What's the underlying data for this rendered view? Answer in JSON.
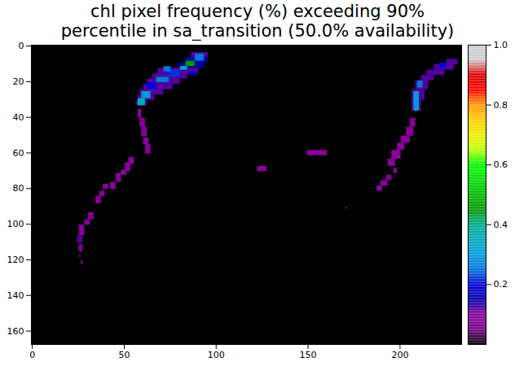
{
  "chart_data": {
    "type": "heatmap",
    "title": "chl pixel frequency (%) exceeding 90%\npercentile in sa_transition (50.0% availability)",
    "xlim": [
      -0.5,
      233.5
    ],
    "ylim": [
      167.5,
      -0.5
    ],
    "xticks": [
      0,
      50,
      100,
      150,
      200
    ],
    "yticks": [
      0,
      20,
      40,
      60,
      80,
      100,
      120,
      140,
      160
    ],
    "color": "nipy_spectral",
    "background_value": 0,
    "runs": [
      [
        4,
        6,
        87,
        95,
        0.12
      ],
      [
        7,
        9,
        84,
        95,
        0.15
      ],
      [
        10,
        12,
        80,
        93,
        0.15
      ],
      [
        13,
        15,
        69,
        90,
        0.12
      ],
      [
        16,
        18,
        66,
        84,
        0.12
      ],
      [
        19,
        21,
        63,
        80,
        0.12
      ],
      [
        22,
        24,
        61,
        76,
        0.12
      ],
      [
        25,
        27,
        59,
        71,
        0.12
      ],
      [
        28,
        30,
        58,
        66,
        0.12
      ],
      [
        31,
        33,
        57,
        62,
        0.12
      ],
      [
        5,
        8,
        89,
        93,
        0.25
      ],
      [
        9,
        11,
        84,
        88,
        0.45
      ],
      [
        12,
        13,
        81,
        84,
        0.35
      ],
      [
        14,
        17,
        74,
        80,
        0.22
      ],
      [
        18,
        20,
        68,
        74,
        0.25
      ],
      [
        21,
        24,
        63,
        67,
        0.2
      ],
      [
        26,
        29,
        60,
        64,
        0.3
      ],
      [
        30,
        33,
        58,
        61,
        0.35
      ],
      [
        12,
        14,
        72,
        75,
        0.25
      ],
      [
        15,
        16,
        86,
        89,
        0.2
      ],
      [
        36,
        40,
        58,
        59,
        0.1
      ],
      [
        41,
        45,
        59,
        61,
        0.1
      ],
      [
        46,
        50,
        60,
        62,
        0.1
      ],
      [
        52,
        55,
        61,
        63,
        0.1
      ],
      [
        56,
        60,
        62,
        64,
        0.1
      ],
      [
        63,
        66,
        53,
        55,
        0.1
      ],
      [
        66,
        70,
        51,
        53,
        0.1
      ],
      [
        70,
        72,
        49,
        51,
        0.1
      ],
      [
        72,
        76,
        46,
        48,
        0.1
      ],
      [
        77,
        80,
        43,
        45,
        0.1
      ],
      [
        78,
        80,
        39,
        41,
        0.1
      ],
      [
        82,
        84,
        37,
        39,
        0.1
      ],
      [
        85,
        88,
        35,
        37,
        0.1
      ],
      [
        94,
        97,
        31,
        33,
        0.1
      ],
      [
        98,
        100,
        29,
        31,
        0.1
      ],
      [
        101,
        106,
        26,
        28,
        0.1
      ],
      [
        107,
        110,
        25,
        27,
        0.12
      ],
      [
        112,
        115,
        26,
        27,
        0.1
      ],
      [
        118,
        118,
        26,
        26,
        0.1
      ],
      [
        121,
        122,
        27,
        27,
        0.1
      ],
      [
        68,
        70,
        123,
        127,
        0.1
      ],
      [
        59,
        61,
        150,
        160,
        0.1
      ],
      [
        91,
        91,
        171,
        171,
        0.1
      ],
      [
        8,
        10,
        226,
        231,
        0.12
      ],
      [
        11,
        13,
        219,
        229,
        0.12
      ],
      [
        14,
        16,
        215,
        224,
        0.12
      ],
      [
        17,
        19,
        212,
        218,
        0.12
      ],
      [
        20,
        24,
        209,
        215,
        0.12
      ],
      [
        25,
        30,
        207,
        213,
        0.12
      ],
      [
        31,
        36,
        207,
        211,
        0.12
      ],
      [
        26,
        36,
        208,
        210,
        0.3
      ],
      [
        20,
        23,
        210,
        212,
        0.25
      ],
      [
        10,
        12,
        222,
        225,
        0.2
      ],
      [
        41,
        45,
        206,
        208,
        0.1
      ],
      [
        46,
        50,
        204,
        207,
        0.1
      ],
      [
        51,
        54,
        201,
        205,
        0.1
      ],
      [
        55,
        58,
        199,
        202,
        0.1
      ],
      [
        59,
        63,
        196,
        200,
        0.1
      ],
      [
        64,
        67,
        194,
        197,
        0.1
      ],
      [
        69,
        71,
        197,
        198,
        0.1
      ],
      [
        73,
        75,
        193,
        195,
        0.1
      ],
      [
        76,
        78,
        190,
        193,
        0.1
      ],
      [
        79,
        81,
        188,
        190,
        0.1
      ]
    ],
    "colorbar": {
      "range": [
        0,
        1
      ],
      "ticks": [
        0.2,
        0.4,
        0.6,
        0.8,
        {
          "value": 1,
          "label": "1.0"
        }
      ]
    }
  }
}
